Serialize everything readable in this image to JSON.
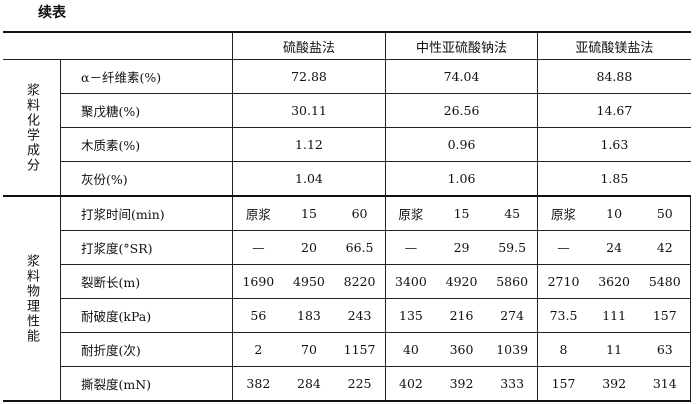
{
  "title": "续表",
  "methods": [
    "硫酸盐法",
    "中性亚硫酸钠法",
    "亚硫酸镁盐法"
  ],
  "chemical": {
    "section_label": "浆料化学成分",
    "rows": [
      {
        "label": "α－纤维素(%)",
        "values": [
          "72.88",
          "74.04",
          "84.88"
        ]
      },
      {
        "label": "聚戊糖(%)",
        "values": [
          "30.11",
          "26.56",
          "14.67"
        ]
      },
      {
        "label": "木质素(%)",
        "values": [
          "1.12",
          "0.96",
          "1.63"
        ]
      },
      {
        "label": "灰份(%)",
        "values": [
          "1.04",
          "1.06",
          "1.85"
        ]
      }
    ]
  },
  "physical": {
    "section_label": "浆料物理性能",
    "rows": [
      {
        "label": "打浆时间(min)",
        "values": [
          "原浆",
          "15",
          "60",
          "原浆",
          "15",
          "45",
          "原浆",
          "10",
          "50"
        ]
      },
      {
        "label": "打浆度(°SR)",
        "values": [
          "—",
          "20",
          "66.5",
          "—",
          "29",
          "59.5",
          "—",
          "24",
          "42"
        ]
      },
      {
        "label": "裂断长(m)",
        "values": [
          "1690",
          "4950",
          "8220",
          "3400",
          "4920",
          "5860",
          "2710",
          "3620",
          "5480"
        ]
      },
      {
        "label": "耐破度(kPa)",
        "values": [
          "56",
          "183",
          "243",
          "135",
          "216",
          "274",
          "73.5",
          "111",
          "157"
        ]
      },
      {
        "label": "耐折度(次)",
        "values": [
          "2",
          "70",
          "1157",
          "40",
          "360",
          "1039",
          "8",
          "11",
          "63"
        ]
      },
      {
        "label": "撕裂度(mN)",
        "values": [
          "382",
          "284",
          "225",
          "402",
          "392",
          "333",
          "157",
          "392",
          "314"
        ]
      }
    ]
  }
}
